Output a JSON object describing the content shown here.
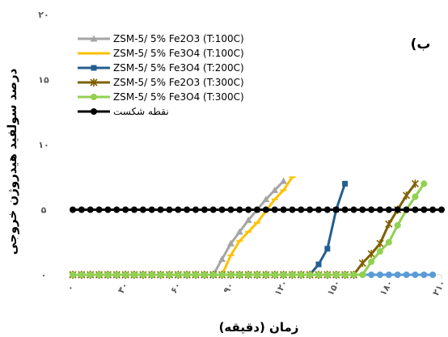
{
  "chart_data": {
    "type": "line",
    "panel_label": "(ب",
    "xlabel": "زمان (دقیقه)",
    "ylabel": "درصد سولفید هیدروژن خروجی",
    "xlim": [
      0,
      210
    ],
    "ylim": [
      0,
      20
    ],
    "x_ticks": [
      0,
      30,
      60,
      90,
      120,
      150,
      180,
      210
    ],
    "x_tick_labels": [
      "۰",
      "۳۰",
      "۶۰",
      "۹۰",
      "۱۲۰",
      "۱۵۰",
      "۱۸۰",
      "۲۱۰"
    ],
    "y_ticks": [
      0,
      5,
      10,
      15,
      20
    ],
    "y_tick_labels": [
      "۰",
      "۵",
      "۱۰",
      "۱۵",
      "۲۰"
    ],
    "grid": false,
    "legend_position": "top-left",
    "series": [
      {
        "name": "ZSM-5/ 5% Fe2O3 (T:100C)",
        "color": "#a5a5a5",
        "marker": "triangle",
        "points": [
          [
            0,
            0
          ],
          [
            5,
            0
          ],
          [
            10,
            0
          ],
          [
            15,
            0
          ],
          [
            20,
            0
          ],
          [
            25,
            0
          ],
          [
            30,
            0
          ],
          [
            35,
            0
          ],
          [
            40,
            0
          ],
          [
            45,
            0
          ],
          [
            50,
            0
          ],
          [
            55,
            0
          ],
          [
            60,
            0
          ],
          [
            65,
            0
          ],
          [
            70,
            0
          ],
          [
            75,
            0
          ],
          [
            80,
            0
          ],
          [
            85,
            1.2
          ],
          [
            90,
            2.4
          ],
          [
            95,
            3.3
          ],
          [
            100,
            4.2
          ],
          [
            105,
            5.0
          ],
          [
            110,
            5.8
          ],
          [
            115,
            6.5
          ],
          [
            120,
            7.2
          ]
        ]
      },
      {
        "name": "ZSM-5/ 5% Fe3O4 (T:100C)",
        "color": "#ffc000",
        "marker": "dash",
        "points": [
          [
            0,
            0
          ],
          [
            5,
            0
          ],
          [
            10,
            0
          ],
          [
            15,
            0
          ],
          [
            20,
            0
          ],
          [
            25,
            0
          ],
          [
            30,
            0
          ],
          [
            35,
            0
          ],
          [
            40,
            0
          ],
          [
            45,
            0
          ],
          [
            50,
            0
          ],
          [
            55,
            0
          ],
          [
            60,
            0
          ],
          [
            65,
            0
          ],
          [
            70,
            0
          ],
          [
            75,
            0
          ],
          [
            80,
            0
          ],
          [
            85,
            0
          ],
          [
            90,
            1.5
          ],
          [
            95,
            2.6
          ],
          [
            100,
            3.3
          ],
          [
            105,
            4.0
          ],
          [
            110,
            4.9
          ],
          [
            115,
            5.8
          ],
          [
            120,
            6.5
          ],
          [
            125,
            7.5
          ]
        ]
      },
      {
        "name": "ZSM-5/ 5% Fe3O4 (T:200C)",
        "color": "#255e91",
        "marker": "square",
        "points": [
          [
            0,
            0
          ],
          [
            5,
            0
          ],
          [
            10,
            0
          ],
          [
            15,
            0
          ],
          [
            20,
            0
          ],
          [
            25,
            0
          ],
          [
            30,
            0
          ],
          [
            35,
            0
          ],
          [
            40,
            0
          ],
          [
            45,
            0
          ],
          [
            50,
            0
          ],
          [
            55,
            0
          ],
          [
            60,
            0
          ],
          [
            65,
            0
          ],
          [
            70,
            0
          ],
          [
            75,
            0
          ],
          [
            80,
            0
          ],
          [
            85,
            0
          ],
          [
            90,
            0
          ],
          [
            95,
            0
          ],
          [
            100,
            0
          ],
          [
            105,
            0
          ],
          [
            110,
            0
          ],
          [
            115,
            0
          ],
          [
            120,
            0
          ],
          [
            125,
            0
          ],
          [
            130,
            0
          ],
          [
            135,
            0
          ],
          [
            140,
            0.8
          ],
          [
            145,
            2.0
          ],
          [
            150,
            5.0
          ],
          [
            155,
            7.0
          ]
        ]
      },
      {
        "name": "ZSM-5/ 5% Fe2O3 (T:300C)",
        "color": "#806000",
        "marker": "star",
        "points": [
          [
            0,
            0
          ],
          [
            5,
            0
          ],
          [
            10,
            0
          ],
          [
            15,
            0
          ],
          [
            20,
            0
          ],
          [
            25,
            0
          ],
          [
            30,
            0
          ],
          [
            35,
            0
          ],
          [
            40,
            0
          ],
          [
            45,
            0
          ],
          [
            50,
            0
          ],
          [
            55,
            0
          ],
          [
            60,
            0
          ],
          [
            65,
            0
          ],
          [
            70,
            0
          ],
          [
            75,
            0
          ],
          [
            80,
            0
          ],
          [
            85,
            0
          ],
          [
            90,
            0
          ],
          [
            95,
            0
          ],
          [
            100,
            0
          ],
          [
            105,
            0
          ],
          [
            110,
            0
          ],
          [
            115,
            0
          ],
          [
            120,
            0
          ],
          [
            125,
            0
          ],
          [
            130,
            0
          ],
          [
            135,
            0
          ],
          [
            140,
            0
          ],
          [
            145,
            0
          ],
          [
            150,
            0
          ],
          [
            155,
            0
          ],
          [
            160,
            0
          ],
          [
            165,
            0.9
          ],
          [
            170,
            1.6
          ],
          [
            175,
            2.4
          ],
          [
            180,
            3.9
          ],
          [
            185,
            5.0
          ],
          [
            190,
            6.1
          ],
          [
            195,
            7.0
          ]
        ]
      },
      {
        "name": "ZSM-5/ 5% Fe3O4 (T:300C)",
        "color": "#92d050",
        "marker": "circle",
        "points": [
          [
            0,
            0
          ],
          [
            5,
            0
          ],
          [
            10,
            0
          ],
          [
            15,
            0
          ],
          [
            20,
            0
          ],
          [
            25,
            0
          ],
          [
            30,
            0
          ],
          [
            35,
            0
          ],
          [
            40,
            0
          ],
          [
            45,
            0
          ],
          [
            50,
            0
          ],
          [
            55,
            0
          ],
          [
            60,
            0
          ],
          [
            65,
            0
          ],
          [
            70,
            0
          ],
          [
            75,
            0
          ],
          [
            80,
            0
          ],
          [
            85,
            0
          ],
          [
            90,
            0
          ],
          [
            95,
            0
          ],
          [
            100,
            0
          ],
          [
            105,
            0
          ],
          [
            110,
            0
          ],
          [
            115,
            0
          ],
          [
            120,
            0
          ],
          [
            125,
            0
          ],
          [
            130,
            0
          ],
          [
            135,
            0
          ],
          [
            140,
            0
          ],
          [
            145,
            0
          ],
          [
            150,
            0
          ],
          [
            155,
            0
          ],
          [
            160,
            0
          ],
          [
            165,
            0
          ],
          [
            170,
            1.0
          ],
          [
            175,
            1.8
          ],
          [
            180,
            2.5
          ],
          [
            185,
            3.8
          ],
          [
            190,
            5.0
          ],
          [
            195,
            6.0
          ],
          [
            200,
            7.0
          ]
        ]
      },
      {
        "name": "ZSM-5 light blue series",
        "color": "#5b9bd5",
        "marker": "circle",
        "in_legend": false,
        "points": [
          [
            0,
            0
          ],
          [
            5,
            0
          ],
          [
            10,
            0
          ],
          [
            15,
            0
          ],
          [
            20,
            0
          ],
          [
            25,
            0
          ],
          [
            30,
            0
          ],
          [
            35,
            0
          ],
          [
            40,
            0
          ],
          [
            45,
            0
          ],
          [
            50,
            0
          ],
          [
            55,
            0
          ],
          [
            60,
            0
          ],
          [
            65,
            0
          ],
          [
            70,
            0
          ],
          [
            75,
            0
          ],
          [
            80,
            0
          ],
          [
            85,
            0
          ],
          [
            90,
            0
          ],
          [
            95,
            0
          ],
          [
            100,
            0
          ],
          [
            105,
            0
          ],
          [
            110,
            0
          ],
          [
            115,
            0
          ],
          [
            120,
            0
          ],
          [
            125,
            0
          ],
          [
            130,
            0
          ],
          [
            135,
            0
          ],
          [
            140,
            0
          ],
          [
            145,
            0
          ],
          [
            150,
            0
          ],
          [
            155,
            0
          ],
          [
            160,
            0
          ],
          [
            165,
            0
          ],
          [
            170,
            0
          ],
          [
            175,
            0
          ],
          [
            180,
            0
          ],
          [
            185,
            0
          ],
          [
            190,
            0
          ],
          [
            195,
            0
          ],
          [
            200,
            0
          ],
          [
            205,
            0
          ]
        ]
      },
      {
        "name": "نقطه شکست",
        "color": "#000000",
        "marker": "circle",
        "points": [
          [
            0,
            5
          ],
          [
            5,
            5
          ],
          [
            10,
            5
          ],
          [
            15,
            5
          ],
          [
            20,
            5
          ],
          [
            25,
            5
          ],
          [
            30,
            5
          ],
          [
            35,
            5
          ],
          [
            40,
            5
          ],
          [
            45,
            5
          ],
          [
            50,
            5
          ],
          [
            55,
            5
          ],
          [
            60,
            5
          ],
          [
            65,
            5
          ],
          [
            70,
            5
          ],
          [
            75,
            5
          ],
          [
            80,
            5
          ],
          [
            85,
            5
          ],
          [
            90,
            5
          ],
          [
            95,
            5
          ],
          [
            100,
            5
          ],
          [
            105,
            5
          ],
          [
            110,
            5
          ],
          [
            115,
            5
          ],
          [
            120,
            5
          ],
          [
            125,
            5
          ],
          [
            130,
            5
          ],
          [
            135,
            5
          ],
          [
            140,
            5
          ],
          [
            145,
            5
          ],
          [
            150,
            5
          ],
          [
            155,
            5
          ],
          [
            160,
            5
          ],
          [
            165,
            5
          ],
          [
            170,
            5
          ],
          [
            175,
            5
          ],
          [
            180,
            5
          ],
          [
            185,
            5
          ],
          [
            190,
            5
          ],
          [
            195,
            5
          ],
          [
            200,
            5
          ],
          [
            205,
            5
          ],
          [
            210,
            5
          ]
        ]
      }
    ]
  }
}
